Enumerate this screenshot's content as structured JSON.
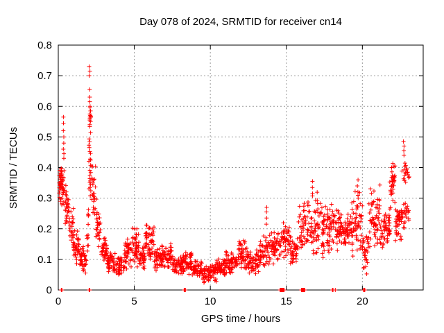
{
  "chart_data": {
    "type": "scatter",
    "title": "Day 078 of 2024, SRMTID for receiver cn14",
    "xlabel": "GPS time / hours",
    "ylabel": "SRMTID / TECUs",
    "xlim": [
      0,
      24
    ],
    "ylim": [
      0,
      0.8
    ],
    "xticks": [
      0,
      5,
      10,
      15,
      20
    ],
    "yticks": [
      0,
      0.1,
      0.2,
      0.3,
      0.4,
      0.5,
      0.6,
      0.7,
      0.8
    ],
    "grid": true,
    "legend": "none",
    "marker": "plus-cross",
    "marker_color": "#ff0000",
    "grid_color": "#9a9a9a",
    "axis_color": "#000000",
    "background_color": "#ffffff",
    "series_name": "SRMTID",
    "envelope_bins": [
      [
        0.05,
        0.25,
        30,
        0.27,
        0.42
      ],
      [
        0.2,
        0.45,
        22,
        0.26,
        0.4
      ],
      [
        0.45,
        0.7,
        26,
        0.2,
        0.36
      ],
      [
        0.7,
        1.0,
        28,
        0.13,
        0.27
      ],
      [
        1.0,
        1.4,
        36,
        0.08,
        0.2
      ],
      [
        1.4,
        1.85,
        40,
        0.05,
        0.16
      ],
      [
        1.85,
        2.0,
        12,
        0.1,
        0.3
      ],
      [
        2.0,
        2.2,
        26,
        0.28,
        0.6
      ],
      [
        2.2,
        2.45,
        22,
        0.2,
        0.43
      ],
      [
        2.45,
        2.8,
        28,
        0.12,
        0.3
      ],
      [
        2.8,
        3.2,
        36,
        0.08,
        0.18
      ],
      [
        3.2,
        3.8,
        50,
        0.055,
        0.13
      ],
      [
        3.8,
        4.3,
        42,
        0.04,
        0.12
      ],
      [
        4.3,
        4.8,
        42,
        0.06,
        0.17
      ],
      [
        4.8,
        5.3,
        42,
        0.07,
        0.21
      ],
      [
        5.3,
        5.7,
        36,
        0.06,
        0.15
      ],
      [
        5.7,
        6.3,
        50,
        0.09,
        0.23
      ],
      [
        6.3,
        6.8,
        40,
        0.05,
        0.15
      ],
      [
        6.8,
        7.5,
        55,
        0.06,
        0.16
      ],
      [
        7.5,
        8.2,
        55,
        0.04,
        0.12
      ],
      [
        8.2,
        8.8,
        50,
        0.05,
        0.13
      ],
      [
        8.8,
        9.5,
        55,
        0.03,
        0.1
      ],
      [
        9.5,
        10.4,
        75,
        0.02,
        0.09
      ],
      [
        10.4,
        11.0,
        50,
        0.04,
        0.11
      ],
      [
        11.0,
        11.8,
        65,
        0.05,
        0.14
      ],
      [
        11.8,
        12.5,
        55,
        0.06,
        0.17
      ],
      [
        12.5,
        13.2,
        55,
        0.05,
        0.14
      ],
      [
        13.2,
        13.8,
        45,
        0.07,
        0.19
      ],
      [
        13.8,
        14.6,
        62,
        0.08,
        0.2
      ],
      [
        14.6,
        15.2,
        45,
        0.1,
        0.22
      ],
      [
        15.2,
        15.8,
        45,
        0.08,
        0.18
      ],
      [
        15.8,
        16.5,
        50,
        0.1,
        0.31
      ],
      [
        16.5,
        17.2,
        50,
        0.08,
        0.33
      ],
      [
        17.2,
        17.8,
        45,
        0.1,
        0.3
      ],
      [
        17.8,
        18.5,
        55,
        0.12,
        0.3
      ],
      [
        18.5,
        19.3,
        65,
        0.13,
        0.26
      ],
      [
        19.3,
        20.0,
        55,
        0.1,
        0.34
      ],
      [
        20.0,
        20.4,
        30,
        0.05,
        0.2
      ],
      [
        20.4,
        21.2,
        62,
        0.12,
        0.35
      ],
      [
        21.2,
        21.8,
        50,
        0.13,
        0.26
      ],
      [
        21.8,
        22.15,
        38,
        0.25,
        0.425
      ],
      [
        22.15,
        22.6,
        40,
        0.15,
        0.3
      ],
      [
        22.6,
        23.1,
        24,
        0.19,
        0.3
      ],
      [
        22.6,
        23.1,
        20,
        0.33,
        0.43
      ]
    ],
    "feature_columns": [
      {
        "x": 0.35,
        "ys": [
          0.43,
          0.445,
          0.46,
          0.48,
          0.5,
          0.52,
          0.545,
          0.565
        ]
      },
      {
        "x": 2.06,
        "ys": [
          0.615,
          0.63,
          0.655,
          0.7,
          0.715,
          0.73
        ]
      },
      {
        "x": 2.1,
        "ys": [
          0.54,
          0.55,
          0.555,
          0.56,
          0.565,
          0.57,
          0.575,
          0.585,
          0.595,
          0.6
        ]
      },
      {
        "x": 13.68,
        "ys": [
          0.215,
          0.235,
          0.255,
          0.27
        ]
      },
      {
        "x": 16.7,
        "ys": [
          0.315,
          0.335,
          0.355
        ]
      },
      {
        "x": 19.7,
        "ys": [
          0.3,
          0.32,
          0.34,
          0.36
        ]
      },
      {
        "x": 22.72,
        "ys": [
          0.44,
          0.455,
          0.47,
          0.485
        ]
      }
    ],
    "zero_value_clusters": [
      {
        "x": 0.22,
        "count": 2
      },
      {
        "x": 2.05,
        "count": 2
      },
      {
        "x": 8.32,
        "count": 3
      },
      {
        "x": 14.72,
        "count": 7
      },
      {
        "x": 16.1,
        "count": 6
      },
      {
        "x": 18.05,
        "count": 2
      },
      {
        "x": 18.22,
        "count": 1
      },
      {
        "x": 20.12,
        "count": 3
      }
    ],
    "seed": 20240378
  }
}
